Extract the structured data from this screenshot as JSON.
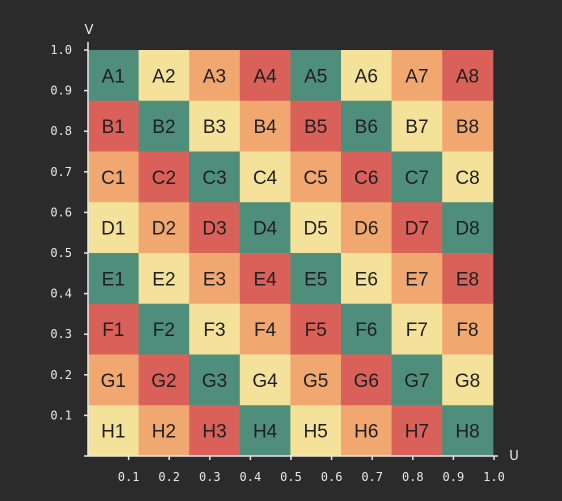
{
  "axes": {
    "u_label": "U",
    "v_label": "V",
    "u_ticks": [
      "0.1",
      "0.2",
      "0.3",
      "0.4",
      "0.5",
      "0.6",
      "0.7",
      "0.8",
      "0.9",
      "1.0"
    ],
    "v_ticks": [
      "0.1",
      "0.2",
      "0.3",
      "0.4",
      "0.5",
      "0.6",
      "0.7",
      "0.8",
      "0.9",
      "1.0"
    ]
  },
  "colors": {
    "red": "#d9615a",
    "orange": "#f0a870",
    "yellow": "#f4e29a",
    "teal": "#4f8e7b",
    "axis": "#e8e8e8",
    "background": "#2b2b2b"
  },
  "grid": {
    "rows": [
      {
        "cells": [
          {
            "label": "A1",
            "color": "teal"
          },
          {
            "label": "A2",
            "color": "yellow"
          },
          {
            "label": "A3",
            "color": "orange"
          },
          {
            "label": "A4",
            "color": "red"
          },
          {
            "label": "A5",
            "color": "teal"
          },
          {
            "label": "A6",
            "color": "yellow"
          },
          {
            "label": "A7",
            "color": "orange"
          },
          {
            "label": "A8",
            "color": "red"
          }
        ]
      },
      {
        "cells": [
          {
            "label": "B1",
            "color": "red"
          },
          {
            "label": "B2",
            "color": "teal"
          },
          {
            "label": "B3",
            "color": "yellow"
          },
          {
            "label": "B4",
            "color": "orange"
          },
          {
            "label": "B5",
            "color": "red"
          },
          {
            "label": "B6",
            "color": "teal"
          },
          {
            "label": "B7",
            "color": "yellow"
          },
          {
            "label": "B8",
            "color": "orange"
          }
        ]
      },
      {
        "cells": [
          {
            "label": "C1",
            "color": "orange"
          },
          {
            "label": "C2",
            "color": "red"
          },
          {
            "label": "C3",
            "color": "teal"
          },
          {
            "label": "C4",
            "color": "yellow"
          },
          {
            "label": "C5",
            "color": "orange"
          },
          {
            "label": "C6",
            "color": "red"
          },
          {
            "label": "C7",
            "color": "teal"
          },
          {
            "label": "C8",
            "color": "yellow"
          }
        ]
      },
      {
        "cells": [
          {
            "label": "D1",
            "color": "yellow"
          },
          {
            "label": "D2",
            "color": "orange"
          },
          {
            "label": "D3",
            "color": "red"
          },
          {
            "label": "D4",
            "color": "teal"
          },
          {
            "label": "D5",
            "color": "yellow"
          },
          {
            "label": "D6",
            "color": "orange"
          },
          {
            "label": "D7",
            "color": "red"
          },
          {
            "label": "D8",
            "color": "teal"
          }
        ]
      },
      {
        "cells": [
          {
            "label": "E1",
            "color": "teal"
          },
          {
            "label": "E2",
            "color": "yellow"
          },
          {
            "label": "E3",
            "color": "orange"
          },
          {
            "label": "E4",
            "color": "red"
          },
          {
            "label": "E5",
            "color": "teal"
          },
          {
            "label": "E6",
            "color": "yellow"
          },
          {
            "label": "E7",
            "color": "orange"
          },
          {
            "label": "E8",
            "color": "red"
          }
        ]
      },
      {
        "cells": [
          {
            "label": "F1",
            "color": "red"
          },
          {
            "label": "F2",
            "color": "teal"
          },
          {
            "label": "F3",
            "color": "yellow"
          },
          {
            "label": "F4",
            "color": "orange"
          },
          {
            "label": "F5",
            "color": "red"
          },
          {
            "label": "F6",
            "color": "teal"
          },
          {
            "label": "F7",
            "color": "yellow"
          },
          {
            "label": "F8",
            "color": "orange"
          }
        ]
      },
      {
        "cells": [
          {
            "label": "G1",
            "color": "orange"
          },
          {
            "label": "G2",
            "color": "red"
          },
          {
            "label": "G3",
            "color": "teal"
          },
          {
            "label": "G4",
            "color": "yellow"
          },
          {
            "label": "G5",
            "color": "orange"
          },
          {
            "label": "G6",
            "color": "red"
          },
          {
            "label": "G7",
            "color": "teal"
          },
          {
            "label": "G8",
            "color": "yellow"
          }
        ]
      },
      {
        "cells": [
          {
            "label": "H1",
            "color": "yellow"
          },
          {
            "label": "H2",
            "color": "orange"
          },
          {
            "label": "H3",
            "color": "red"
          },
          {
            "label": "H4",
            "color": "teal"
          },
          {
            "label": "H5",
            "color": "yellow"
          },
          {
            "label": "H6",
            "color": "orange"
          },
          {
            "label": "H7",
            "color": "red"
          },
          {
            "label": "H8",
            "color": "teal"
          }
        ]
      }
    ]
  }
}
